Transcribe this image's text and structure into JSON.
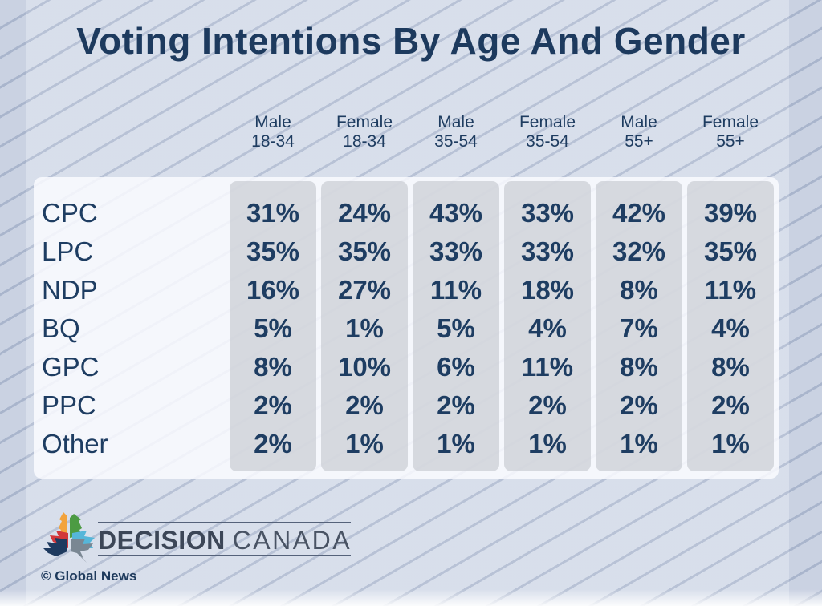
{
  "title": "Voting Intentions By Age And Gender",
  "chart_data": {
    "type": "table",
    "title": "Voting Intentions By Age And Gender",
    "columns": [
      "Male 18-34",
      "Female 18-34",
      "Male 35-54",
      "Female 35-54",
      "Male 55+",
      "Female 55+"
    ],
    "value_suffix": "%",
    "rows": [
      {
        "party": "CPC",
        "values": [
          31,
          24,
          43,
          33,
          42,
          39
        ]
      },
      {
        "party": "LPC",
        "values": [
          35,
          35,
          33,
          33,
          32,
          35
        ]
      },
      {
        "party": "NDP",
        "values": [
          16,
          27,
          11,
          18,
          8,
          11
        ]
      },
      {
        "party": "BQ",
        "values": [
          5,
          1,
          5,
          4,
          7,
          4
        ]
      },
      {
        "party": "GPC",
        "values": [
          8,
          10,
          6,
          11,
          8,
          8
        ]
      },
      {
        "party": "PPC",
        "values": [
          2,
          2,
          2,
          2,
          2,
          2
        ]
      },
      {
        "party": "Other",
        "values": [
          2,
          1,
          1,
          1,
          1,
          1
        ]
      }
    ]
  },
  "branding": {
    "wordmark_bold": "DECISION",
    "wordmark_light": "CANADA",
    "copyright": "© Global News",
    "logo_icon": "maple-leaf-icon",
    "leaf_colors": {
      "orange": "#F2A33C",
      "green": "#4C9B43",
      "red": "#D2373B",
      "teal": "#56B6D9",
      "navy": "#1E3A5F",
      "gray": "#7A8793"
    }
  },
  "colors": {
    "background": "#D4DBE9",
    "stripe": "#B9C3D6",
    "navy_text": "#1E3D62",
    "card": "#FAFCFF",
    "column_gray": "#D8DADE",
    "wordmark": "#3C4657"
  }
}
